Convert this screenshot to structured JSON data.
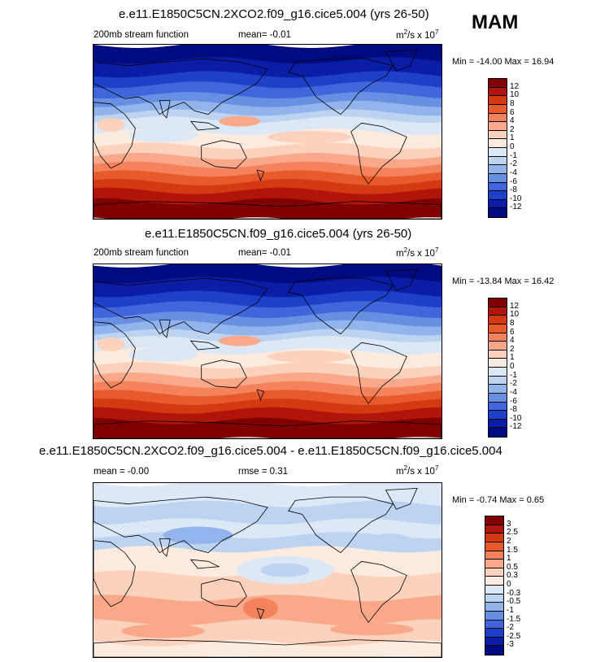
{
  "season": "MAM",
  "panels": [
    {
      "title": "e.e11.E1850C5CN.2XCO2.f09_g16.cice5.004 (yrs 26-50)",
      "left_label": "200mb stream function",
      "mid_label": "mean=  -0.01",
      "units": "m2/s x 107",
      "minmax": "Min = -14.00 Max =  16.94",
      "colorbar_labels": [
        "12",
        "10",
        "8",
        "6",
        "4",
        "2",
        "1",
        "0",
        "-1",
        "-2",
        "-4",
        "-6",
        "-8",
        "-10",
        "-12"
      ]
    },
    {
      "title": "e.e11.E1850C5CN.f09_g16.cice5.004 (yrs 26-50)",
      "left_label": "200mb stream function",
      "mid_label": "mean=  -0.01",
      "units": "m2/s x 107",
      "minmax": "Min = -13.84 Max =  16.42",
      "colorbar_labels": [
        "12",
        "10",
        "8",
        "6",
        "4",
        "2",
        "1",
        "0",
        "-1",
        "-2",
        "-4",
        "-6",
        "-8",
        "-10",
        "-12"
      ]
    },
    {
      "title": "e.e11.E1850C5CN.2XCO2.f09_g16.cice5.004 - e.e11.E1850C5CN.f09_g16.cice5.004",
      "left_label": "mean =  -0.00",
      "mid_label": "rmse =   0.31",
      "units": "m2/s x 107",
      "minmax": "Min = -0.74 Max =   0.65",
      "colorbar_labels": [
        "3",
        "2.5",
        "2",
        "1.5",
        "1",
        "0.5",
        "0.3",
        "0",
        "-0.3",
        "-0.5",
        "-1",
        "-1.5",
        "-2",
        "-2.5",
        "-3"
      ]
    }
  ],
  "colors": {
    "scale": [
      "#800000",
      "#b0150a",
      "#d33a12",
      "#e95a2a",
      "#f4825a",
      "#f9a98a",
      "#fcd2bd",
      "#fdebdf",
      "#dde8f7",
      "#bcd3f2",
      "#92b4ec",
      "#6790e3",
      "#3f66dc",
      "#1d40c8",
      "#0a1da6",
      "#000b80"
    ],
    "line": "#000000"
  },
  "chart_data": [
    {
      "type": "heatmap",
      "title": "e.e11.E1850C5CN.2XCO2.f09_g16.cice5.004 (yrs 26-50)",
      "variable": "200mb stream function",
      "units": "m2/s x 10^7",
      "season": "MAM",
      "mean": -0.01,
      "min": -14.0,
      "max": 16.94,
      "contour_levels": [
        -12,
        -10,
        -8,
        -6,
        -4,
        -2,
        -1,
        0,
        1,
        2,
        4,
        6,
        8,
        10,
        12
      ],
      "zonal_pattern": "strongly negative (blue) in the northern midlatitudes, near zero in the tropics, strongly positive (dark red) in the southern midlatitudes and high latitudes",
      "projection": "global cylindrical equidistant map, 0-360 longitude"
    },
    {
      "type": "heatmap",
      "title": "e.e11.E1850C5CN.f09_g16.cice5.004 (yrs 26-50)",
      "variable": "200mb stream function",
      "units": "m2/s x 10^7",
      "season": "MAM",
      "mean": -0.01,
      "min": -13.84,
      "max": 16.42,
      "contour_levels": [
        -12,
        -10,
        -8,
        -6,
        -4,
        -2,
        -1,
        0,
        1,
        2,
        4,
        6,
        8,
        10,
        12
      ],
      "zonal_pattern": "similar to the 2XCO2 case: blue in the north, red in the south",
      "projection": "global cylindrical equidistant map, 0-360 longitude"
    },
    {
      "type": "heatmap",
      "title": "e.e11.E1850C5CN.2XCO2.f09_g16.cice5.004 - e.e11.E1850C5CN.f09_g16.cice5.004",
      "variable": "difference",
      "units": "m2/s x 10^7",
      "mean": -0.0,
      "rmse": 0.31,
      "min": -0.74,
      "max": 0.65,
      "contour_levels": [
        -3,
        -2.5,
        -2,
        -1.5,
        -1,
        -0.5,
        -0.3,
        0,
        0.3,
        0.5,
        1,
        1.5,
        2,
        2.5,
        3
      ],
      "zonal_pattern": "weakly negative (light blue) in the northern extratropics and over the tropical Pacific, weakly positive (light red) in the southern midlatitudes",
      "projection": "global cylindrical equidistant map, 0-360 longitude"
    }
  ]
}
